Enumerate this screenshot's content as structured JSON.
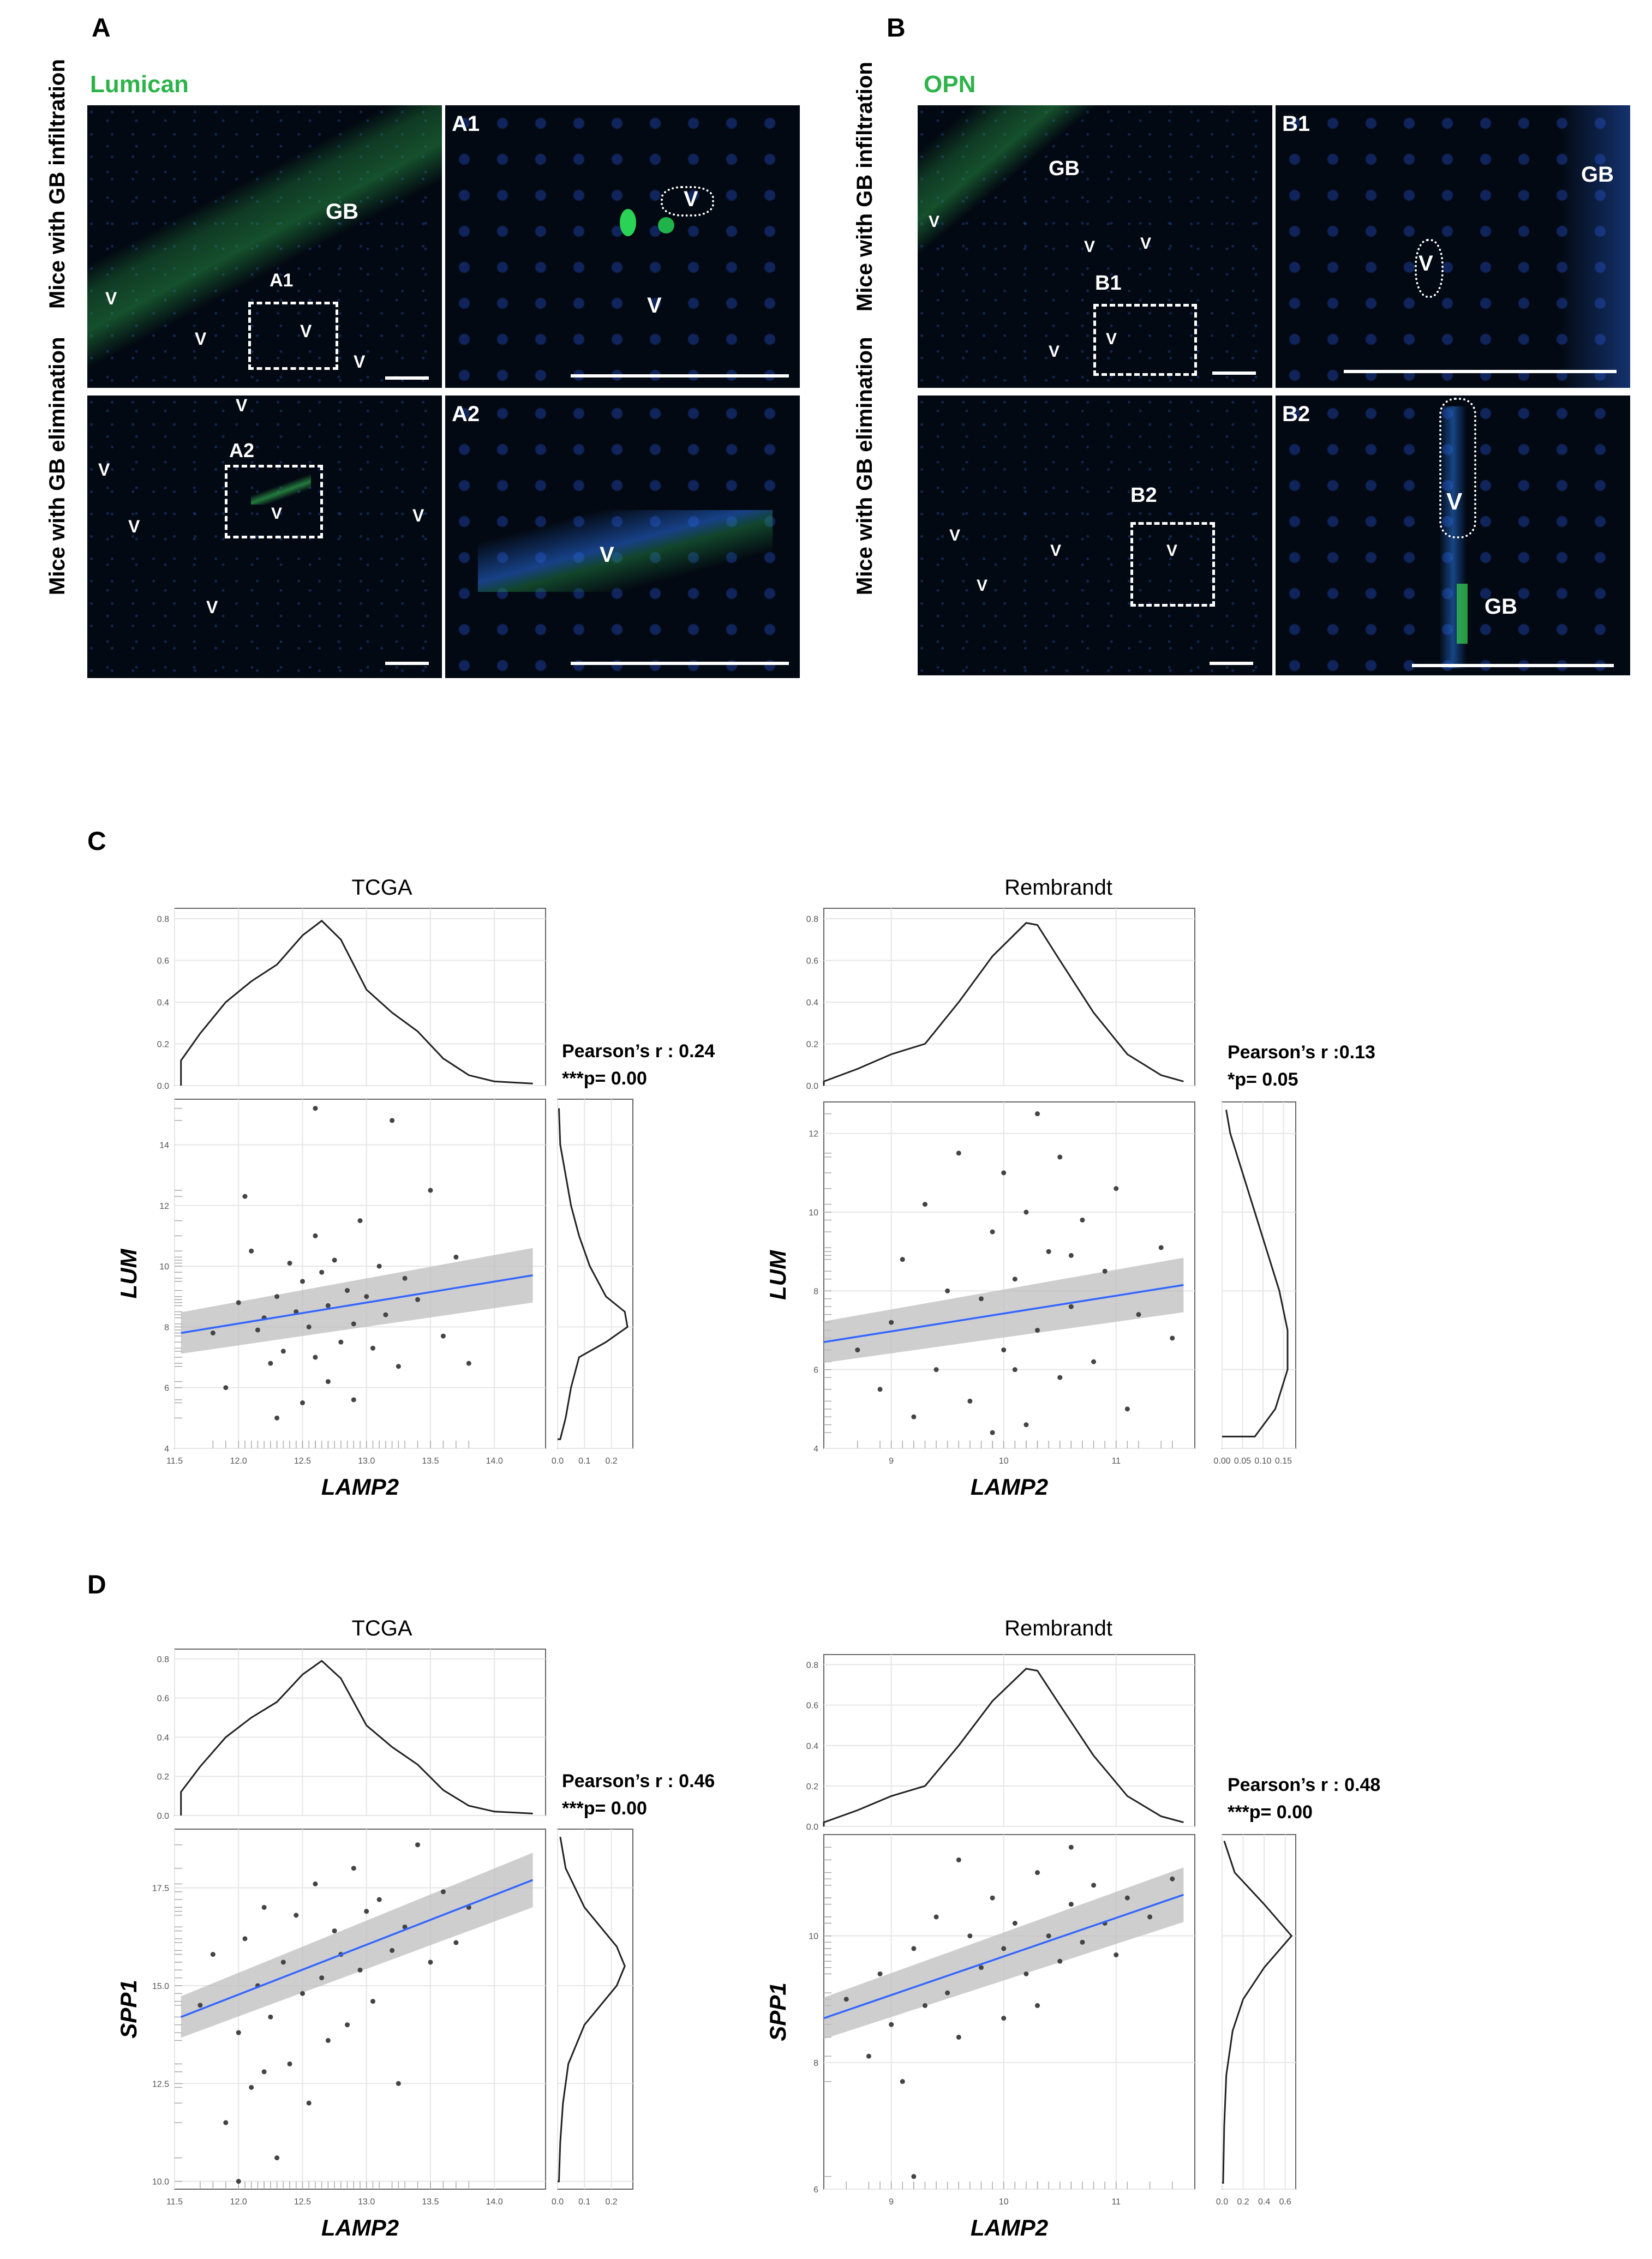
{
  "panels": {
    "A": {
      "letter": "A",
      "stain": "Lumican",
      "row1": "Mice with GB infiltration",
      "row2": "Mice with GB elimination",
      "r1_labels": [
        "GB",
        "A1",
        "V",
        "V",
        "V",
        "V"
      ],
      "inset1": "A1",
      "inset1_v": [
        "V",
        "V"
      ],
      "r2_labels": [
        "V",
        "A2",
        "V",
        "V",
        "V",
        "V",
        "V"
      ],
      "inset2": "A2",
      "inset2_v": [
        "V"
      ]
    },
    "B": {
      "letter": "B",
      "stain": "OPN",
      "row1": "Mice with GB infiltration",
      "row2": "Mice with GB elimination",
      "r1_labels": [
        "GB",
        "V",
        "V",
        "V",
        "B1",
        "V",
        "V"
      ],
      "inset1": "B1",
      "inset1_v": [
        "GB",
        "V"
      ],
      "r2_labels": [
        "B2",
        "V",
        "V",
        "V",
        "V"
      ],
      "inset2": "B2",
      "inset2_v": [
        "V",
        "GB"
      ]
    },
    "C": {
      "letter": "C"
    },
    "D": {
      "letter": "D"
    }
  },
  "chart_data": [
    {
      "id": "C-TCGA",
      "type": "scatter",
      "title": "TCGA",
      "xlabel": "LAMP2",
      "ylabel": "LUM",
      "xlim": [
        11.5,
        14.4
      ],
      "ylim": [
        4,
        15.5
      ],
      "xticks": [
        11.5,
        12.0,
        12.5,
        13.0,
        13.5,
        14.0
      ],
      "yticks": [
        4,
        6,
        8,
        10,
        12,
        14
      ],
      "xtick_labels": [
        "11.5",
        "12.0",
        "12.5",
        "13.0",
        "13.5",
        "14.0"
      ],
      "ytick_labels": [
        "4",
        "6",
        "8",
        "10",
        "12",
        "14"
      ],
      "fit": [
        [
          11.55,
          7.8
        ],
        [
          14.3,
          9.7
        ]
      ],
      "stat1": "Pearson’s r : 0.24",
      "stat2": "***p= 0.00",
      "top_density": {
        "ylim": [
          0,
          0.85
        ],
        "yticks": [
          0.0,
          0.2,
          0.4,
          0.6,
          0.8
        ],
        "ytick_labels": [
          "0.0",
          "0.2",
          "0.4",
          "0.6",
          "0.8"
        ],
        "x": [
          11.55,
          11.7,
          11.9,
          12.1,
          12.3,
          12.5,
          12.65,
          12.8,
          13.0,
          13.2,
          13.4,
          13.6,
          13.8,
          14.0,
          14.3
        ],
        "y": [
          0.12,
          0.25,
          0.4,
          0.5,
          0.58,
          0.72,
          0.79,
          0.7,
          0.46,
          0.35,
          0.26,
          0.13,
          0.05,
          0.02,
          0.01
        ]
      },
      "right_density": {
        "xlim": [
          0,
          0.28
        ],
        "xticks": [
          0.0,
          0.1,
          0.2
        ],
        "xtick_labels": [
          "0.0",
          "0.1",
          "0.2"
        ],
        "y": [
          4.3,
          5,
          6,
          7,
          7.5,
          8,
          8.5,
          9,
          10,
          11,
          12,
          13,
          14,
          15.2
        ],
        "x": [
          0.01,
          0.03,
          0.05,
          0.08,
          0.18,
          0.26,
          0.25,
          0.18,
          0.12,
          0.08,
          0.05,
          0.03,
          0.01,
          0.005
        ]
      },
      "points": [
        [
          11.8,
          7.8
        ],
        [
          11.9,
          6.0
        ],
        [
          12.0,
          8.8
        ],
        [
          12.05,
          12.3
        ],
        [
          12.1,
          10.5
        ],
        [
          12.15,
          7.9
        ],
        [
          12.2,
          8.3
        ],
        [
          12.25,
          6.8
        ],
        [
          12.3,
          9.0
        ],
        [
          12.35,
          7.2
        ],
        [
          12.4,
          10.1
        ],
        [
          12.45,
          8.5
        ],
        [
          12.5,
          5.5
        ],
        [
          12.5,
          9.5
        ],
        [
          12.55,
          8.0
        ],
        [
          12.6,
          11.0
        ],
        [
          12.6,
          7.0
        ],
        [
          12.65,
          9.8
        ],
        [
          12.7,
          6.2
        ],
        [
          12.7,
          8.7
        ],
        [
          12.75,
          10.2
        ],
        [
          12.8,
          7.5
        ],
        [
          12.85,
          9.2
        ],
        [
          12.9,
          5.6
        ],
        [
          12.9,
          8.1
        ],
        [
          12.95,
          11.5
        ],
        [
          13.0,
          9.0
        ],
        [
          13.05,
          7.3
        ],
        [
          13.1,
          10.0
        ],
        [
          13.15,
          8.4
        ],
        [
          13.2,
          14.8
        ],
        [
          13.25,
          6.7
        ],
        [
          13.3,
          9.6
        ],
        [
          13.4,
          8.9
        ],
        [
          13.5,
          12.5
        ],
        [
          13.6,
          7.7
        ],
        [
          13.7,
          10.3
        ],
        [
          13.8,
          6.8
        ],
        [
          12.6,
          15.2
        ],
        [
          12.3,
          5.0
        ]
      ]
    },
    {
      "id": "C-Rembrandt",
      "type": "scatter",
      "title": "Rembrandt",
      "xlabel": "LAMP2",
      "ylabel": "LUM",
      "xlim": [
        8.4,
        11.7
      ],
      "ylim": [
        4,
        12.8
      ],
      "xticks": [
        9,
        10,
        11
      ],
      "yticks": [
        4,
        6,
        8,
        10,
        12
      ],
      "xtick_labels": [
        "9",
        "10",
        "11"
      ],
      "ytick_labels": [
        "4",
        "6",
        "8",
        "10",
        "12"
      ],
      "fit": [
        [
          8.4,
          6.7
        ],
        [
          11.6,
          8.15
        ]
      ],
      "stat1": "Pearson’s r :0.13",
      "stat2": "*p= 0.05",
      "top_density": {
        "ylim": [
          0,
          0.85
        ],
        "yticks": [
          0.0,
          0.2,
          0.4,
          0.6,
          0.8
        ],
        "ytick_labels": [
          "0.0",
          "0.2",
          "0.4",
          "0.6",
          "0.8"
        ],
        "x": [
          8.4,
          8.7,
          9.0,
          9.3,
          9.6,
          9.9,
          10.2,
          10.3,
          10.5,
          10.8,
          11.1,
          11.4,
          11.6
        ],
        "y": [
          0.02,
          0.08,
          0.15,
          0.2,
          0.4,
          0.62,
          0.78,
          0.77,
          0.6,
          0.35,
          0.15,
          0.05,
          0.02
        ]
      },
      "right_density": {
        "xlim": [
          0,
          0.18
        ],
        "xticks": [
          0.0,
          0.05,
          0.1,
          0.15
        ],
        "xtick_labels": [
          "0.00",
          "0.05",
          "0.10",
          "0.15"
        ],
        "y": [
          4.3,
          5,
          6,
          7,
          8,
          9,
          10,
          11,
          12,
          12.6
        ],
        "x": [
          0.08,
          0.13,
          0.16,
          0.16,
          0.14,
          0.11,
          0.08,
          0.05,
          0.02,
          0.01
        ]
      },
      "points": [
        [
          8.7,
          6.5
        ],
        [
          8.9,
          5.5
        ],
        [
          9.0,
          7.2
        ],
        [
          9.1,
          8.8
        ],
        [
          9.2,
          4.8
        ],
        [
          9.3,
          10.2
        ],
        [
          9.4,
          6.0
        ],
        [
          9.5,
          8.0
        ],
        [
          9.6,
          11.5
        ],
        [
          9.7,
          5.2
        ],
        [
          9.8,
          7.8
        ],
        [
          9.9,
          9.5
        ],
        [
          10.0,
          6.5
        ],
        [
          10.0,
          11.0
        ],
        [
          10.1,
          8.3
        ],
        [
          10.2,
          4.6
        ],
        [
          10.2,
          10.0
        ],
        [
          10.3,
          7.0
        ],
        [
          10.3,
          12.5
        ],
        [
          10.4,
          9.0
        ],
        [
          10.5,
          5.8
        ],
        [
          10.5,
          11.4
        ],
        [
          10.6,
          7.6
        ],
        [
          10.7,
          9.8
        ],
        [
          10.8,
          6.2
        ],
        [
          10.9,
          8.5
        ],
        [
          11.0,
          10.6
        ],
        [
          11.1,
          5.0
        ],
        [
          11.2,
          7.4
        ],
        [
          11.4,
          9.1
        ],
        [
          11.5,
          6.8
        ],
        [
          10.1,
          6.0
        ],
        [
          9.9,
          4.4
        ],
        [
          10.6,
          8.9
        ]
      ]
    },
    {
      "id": "D-TCGA",
      "type": "scatter",
      "title": "TCGA",
      "xlabel": "LAMP2",
      "ylabel": "SPP1",
      "xlim": [
        11.5,
        14.4
      ],
      "ylim": [
        9.8,
        19
      ],
      "xticks": [
        11.5,
        12.0,
        12.5,
        13.0,
        13.5,
        14.0
      ],
      "yticks": [
        10.0,
        12.5,
        15.0,
        17.5
      ],
      "xtick_labels": [
        "11.5",
        "12.0",
        "12.5",
        "13.0",
        "13.5",
        "14.0"
      ],
      "ytick_labels": [
        "10.0",
        "12.5",
        "15.0",
        "17.5"
      ],
      "fit": [
        [
          11.55,
          14.2
        ],
        [
          14.3,
          17.7
        ]
      ],
      "stat1": "Pearson’s r : 0.46",
      "stat2": "***p= 0.00",
      "top_density": {
        "ylim": [
          0,
          0.85
        ],
        "yticks": [
          0.0,
          0.2,
          0.4,
          0.6,
          0.8
        ],
        "ytick_labels": [
          "0.0",
          "0.2",
          "0.4",
          "0.6",
          "0.8"
        ],
        "x": [
          11.55,
          11.7,
          11.9,
          12.1,
          12.3,
          12.5,
          12.65,
          12.8,
          13.0,
          13.2,
          13.4,
          13.6,
          13.8,
          14.0,
          14.3
        ],
        "y": [
          0.12,
          0.25,
          0.4,
          0.5,
          0.58,
          0.72,
          0.79,
          0.7,
          0.46,
          0.35,
          0.26,
          0.13,
          0.05,
          0.02,
          0.01
        ]
      },
      "right_density": {
        "xlim": [
          0,
          0.28
        ],
        "xticks": [
          0.0,
          0.1,
          0.2
        ],
        "xtick_labels": [
          "0.0",
          "0.1",
          "0.2"
        ],
        "y": [
          10.0,
          11,
          12,
          13,
          14,
          15,
          15.5,
          16,
          17,
          18,
          18.8
        ],
        "x": [
          0.005,
          0.01,
          0.02,
          0.04,
          0.1,
          0.22,
          0.25,
          0.22,
          0.1,
          0.03,
          0.01
        ]
      },
      "points": [
        [
          11.7,
          14.5
        ],
        [
          11.8,
          15.8
        ],
        [
          11.9,
          11.5
        ],
        [
          12.0,
          13.8
        ],
        [
          12.05,
          16.2
        ],
        [
          12.1,
          12.4
        ],
        [
          12.15,
          15.0
        ],
        [
          12.2,
          17.0
        ],
        [
          12.25,
          14.2
        ],
        [
          12.3,
          10.6
        ],
        [
          12.35,
          15.6
        ],
        [
          12.4,
          13.0
        ],
        [
          12.45,
          16.8
        ],
        [
          12.5,
          14.8
        ],
        [
          12.55,
          12.0
        ],
        [
          12.6,
          17.6
        ],
        [
          12.65,
          15.2
        ],
        [
          12.7,
          13.6
        ],
        [
          12.75,
          16.4
        ],
        [
          12.8,
          15.8
        ],
        [
          12.85,
          14.0
        ],
        [
          12.9,
          18.0
        ],
        [
          12.95,
          15.4
        ],
        [
          13.0,
          16.9
        ],
        [
          13.05,
          14.6
        ],
        [
          13.1,
          17.2
        ],
        [
          13.2,
          15.9
        ],
        [
          13.25,
          12.5
        ],
        [
          13.3,
          16.5
        ],
        [
          13.4,
          18.6
        ],
        [
          13.5,
          15.6
        ],
        [
          13.6,
          17.4
        ],
        [
          13.7,
          16.1
        ],
        [
          13.8,
          17.0
        ],
        [
          12.0,
          10.0
        ],
        [
          12.2,
          12.8
        ]
      ]
    },
    {
      "id": "D-Rembrandt",
      "type": "scatter",
      "title": "Rembrandt",
      "xlabel": "LAMP2",
      "ylabel": "SPP1",
      "xlim": [
        8.4,
        11.7
      ],
      "ylim": [
        6,
        11.6
      ],
      "xticks": [
        9,
        10,
        11
      ],
      "yticks": [
        6,
        8,
        10
      ],
      "xtick_labels": [
        "9",
        "10",
        "11"
      ],
      "ytick_labels": [
        "6",
        "8",
        "10"
      ],
      "fit": [
        [
          8.4,
          8.7
        ],
        [
          11.6,
          10.65
        ]
      ],
      "stat1": "Pearson’s r : 0.48",
      "stat2": "***p= 0.00",
      "top_density": {
        "ylim": [
          0,
          0.85
        ],
        "yticks": [
          0.0,
          0.2,
          0.4,
          0.6,
          0.8
        ],
        "ytick_labels": [
          "0.0",
          "0.2",
          "0.4",
          "0.6",
          "0.8"
        ],
        "x": [
          8.4,
          8.7,
          9.0,
          9.3,
          9.6,
          9.9,
          10.2,
          10.3,
          10.5,
          10.8,
          11.1,
          11.4,
          11.6
        ],
        "y": [
          0.02,
          0.08,
          0.15,
          0.2,
          0.4,
          0.62,
          0.78,
          0.77,
          0.6,
          0.35,
          0.15,
          0.05,
          0.02
        ]
      },
      "right_density": {
        "xlim": [
          0,
          0.7
        ],
        "xticks": [
          0.0,
          0.2,
          0.4,
          0.6
        ],
        "xtick_labels": [
          "0.0",
          "0.2",
          "0.4",
          "0.6"
        ],
        "y": [
          6.1,
          7,
          7.8,
          8.5,
          9,
          9.5,
          10,
          10.5,
          11,
          11.5
        ],
        "x": [
          0.01,
          0.02,
          0.04,
          0.1,
          0.2,
          0.4,
          0.66,
          0.4,
          0.12,
          0.02
        ]
      },
      "points": [
        [
          8.6,
          9.0
        ],
        [
          8.8,
          8.1
        ],
        [
          8.9,
          9.4
        ],
        [
          9.0,
          8.6
        ],
        [
          9.1,
          7.7
        ],
        [
          9.2,
          9.8
        ],
        [
          9.3,
          8.9
        ],
        [
          9.4,
          10.3
        ],
        [
          9.5,
          9.1
        ],
        [
          9.6,
          8.4
        ],
        [
          9.7,
          10.0
        ],
        [
          9.8,
          9.5
        ],
        [
          9.9,
          10.6
        ],
        [
          10.0,
          9.8
        ],
        [
          10.0,
          8.7
        ],
        [
          10.1,
          10.2
        ],
        [
          10.2,
          9.4
        ],
        [
          10.3,
          11.0
        ],
        [
          10.4,
          10.0
        ],
        [
          10.5,
          9.6
        ],
        [
          10.6,
          10.5
        ],
        [
          10.7,
          9.9
        ],
        [
          10.8,
          10.8
        ],
        [
          10.9,
          10.2
        ],
        [
          11.0,
          9.7
        ],
        [
          11.1,
          10.6
        ],
        [
          11.3,
          10.3
        ],
        [
          11.5,
          10.9
        ],
        [
          9.2,
          6.2
        ],
        [
          9.6,
          11.2
        ],
        [
          10.3,
          8.9
        ],
        [
          10.6,
          11.4
        ]
      ]
    }
  ]
}
